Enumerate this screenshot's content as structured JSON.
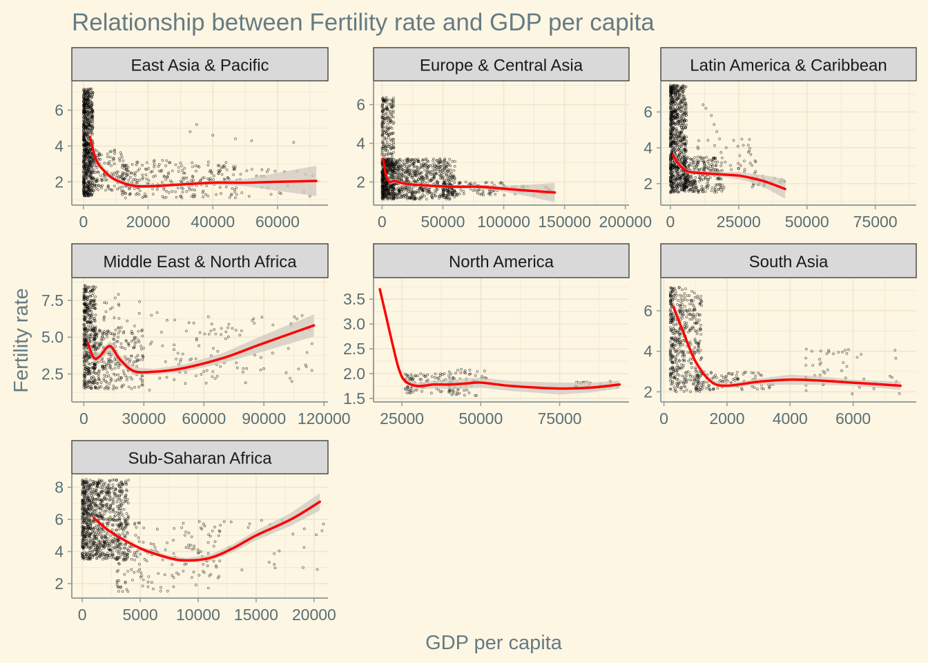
{
  "title": "Relationship between Fertility rate and GDP per capita",
  "xlabel": "GDP per capita",
  "ylabel": "Fertility rate",
  "colors": {
    "background": "#fdf6e3",
    "panel_background": "#fdf6e3",
    "grid": "#efe6cf",
    "strip_fill": "#d9d9d9",
    "strip_border": "#333333",
    "axis": "#93a1a1",
    "text": "#657b83",
    "tick_text": "#586e75",
    "points": "#000000",
    "smooth": "#ff0000",
    "ribbon": "#cfcac0"
  },
  "chart_data": {
    "type": "scatter",
    "facet_layout": "3 columns, free scales",
    "smoothing": "red loess line with grey confidence ribbon",
    "grid": true,
    "legend": "none",
    "panels": [
      {
        "name": "East Asia & Pacific",
        "xlim": [
          -3600,
          75600
        ],
        "ylim": [
          0.7,
          7.6
        ],
        "xticks": [
          0,
          20000,
          40000,
          60000
        ],
        "yticks": [
          2,
          4,
          6
        ],
        "xtick_labels": [
          "0",
          "20000",
          "40000",
          "60000"
        ],
        "ytick_labels": [
          "2",
          "4",
          "6"
        ],
        "smooth": [
          [
            2000,
            4.5
          ],
          [
            4000,
            3.2
          ],
          [
            7000,
            2.5
          ],
          [
            10000,
            2.1
          ],
          [
            15000,
            1.8
          ],
          [
            20000,
            1.75
          ],
          [
            30000,
            1.85
          ],
          [
            40000,
            1.95
          ],
          [
            50000,
            1.95
          ],
          [
            60000,
            2.0
          ],
          [
            72000,
            2.05
          ]
        ],
        "ribbon_halfwidth": [
          0.35,
          0.2,
          0.15,
          0.12,
          0.1,
          0.1,
          0.1,
          0.1,
          0.2,
          0.5,
          0.85
        ],
        "clusters": [
          {
            "x": [
              0,
              3000
            ],
            "y": [
              1.2,
              7.2
            ],
            "n": 700
          },
          {
            "x": [
              3000,
              12000
            ],
            "y": [
              1.5,
              3.8
            ],
            "n": 120
          },
          {
            "x": [
              12000,
              48000
            ],
            "y": [
              1.1,
              3.2
            ],
            "n": 220
          },
          {
            "x": [
              30000,
              72000
            ],
            "y": [
              1.1,
              2.7
            ],
            "n": 60
          }
        ],
        "extra_points": [
          [
            33000,
            4.8
          ],
          [
            35000,
            5.2
          ],
          [
            40000,
            4.6
          ],
          [
            47000,
            4.4
          ],
          [
            52000,
            4.3
          ],
          [
            65000,
            4.2
          ],
          [
            58000,
            1.3
          ],
          [
            70000,
            1.2
          ]
        ]
      },
      {
        "name": "Europe & Central Asia",
        "xlim": [
          -7000,
          203000
        ],
        "ylim": [
          0.8,
          7.2
        ],
        "xticks": [
          0,
          50000,
          100000,
          150000,
          200000
        ],
        "yticks": [
          2,
          4,
          6
        ],
        "xtick_labels": [
          "0",
          "50000",
          "100000",
          "150000",
          "200000"
        ],
        "ytick_labels": [
          "2",
          "4",
          "6"
        ],
        "smooth": [
          [
            1000,
            3.2
          ],
          [
            3000,
            2.4
          ],
          [
            6000,
            2.0
          ],
          [
            10000,
            2.05
          ],
          [
            20000,
            1.9
          ],
          [
            40000,
            1.8
          ],
          [
            60000,
            1.75
          ],
          [
            80000,
            1.75
          ],
          [
            100000,
            1.65
          ],
          [
            120000,
            1.55
          ],
          [
            142000,
            1.45
          ]
        ],
        "ribbon_halfwidth": [
          0.4,
          0.2,
          0.15,
          0.1,
          0.08,
          0.08,
          0.08,
          0.1,
          0.15,
          0.3,
          0.5
        ],
        "clusters": [
          {
            "x": [
              0,
              10000
            ],
            "y": [
              1.1,
              6.4
            ],
            "n": 300
          },
          {
            "x": [
              0,
              60000
            ],
            "y": [
              1.1,
              3.2
            ],
            "n": 900
          },
          {
            "x": [
              50000,
              100000
            ],
            "y": [
              1.3,
              2.0
            ],
            "n": 120
          },
          {
            "x": [
              100000,
              142000
            ],
            "y": [
              1.3,
              1.8
            ],
            "n": 30
          }
        ],
        "extra_points": []
      },
      {
        "name": "Latin America & Caribbean",
        "xlim": [
          -3500,
          90000
        ],
        "ylim": [
          0.8,
          7.7
        ],
        "xticks": [
          0,
          25000,
          50000,
          75000
        ],
        "yticks": [
          2,
          4,
          6
        ],
        "xtick_labels": [
          "0",
          "25000",
          "50000",
          "75000"
        ],
        "ytick_labels": [
          "2",
          "4",
          "6"
        ],
        "smooth": [
          [
            1000,
            3.6
          ],
          [
            3000,
            3.1
          ],
          [
            6000,
            2.7
          ],
          [
            10000,
            2.6
          ],
          [
            15000,
            2.55
          ],
          [
            20000,
            2.5
          ],
          [
            25000,
            2.45
          ],
          [
            30000,
            2.3
          ],
          [
            35000,
            2.1
          ],
          [
            42000,
            1.7
          ]
        ],
        "ribbon_halfwidth": [
          0.25,
          0.15,
          0.1,
          0.1,
          0.12,
          0.15,
          0.2,
          0.25,
          0.35,
          0.55
        ],
        "clusters": [
          {
            "x": [
              0,
              6000
            ],
            "y": [
              1.5,
              7.5
            ],
            "n": 800
          },
          {
            "x": [
              5000,
              20000
            ],
            "y": [
              1.5,
              3.5
            ],
            "n": 250
          },
          {
            "x": [
              10000,
              32000
            ],
            "y": [
              2.2,
              4.5
            ],
            "n": 60
          },
          {
            "x": [
              30000,
              42000
            ],
            "y": [
              1.8,
              2.6
            ],
            "n": 25
          }
        ],
        "extra_points": [
          [
            12000,
            6.4
          ],
          [
            13000,
            6.2
          ],
          [
            15000,
            5.8
          ],
          [
            16000,
            5.3
          ],
          [
            17000,
            4.9
          ],
          [
            18000,
            4.5
          ]
        ]
      },
      {
        "name": "Middle East & North Africa",
        "xlim": [
          -6000,
          122000
        ],
        "ylim": [
          0.6,
          9.0
        ],
        "xticks": [
          0,
          30000,
          60000,
          90000,
          120000
        ],
        "yticks": [
          2.5,
          5.0,
          7.5
        ],
        "xtick_labels": [
          "0",
          "30000",
          "60000",
          "90000",
          "120000"
        ],
        "ytick_labels": [
          "2.5",
          "5.0",
          "7.5"
        ],
        "smooth": [
          [
            2000,
            4.6
          ],
          [
            5000,
            3.6
          ],
          [
            8000,
            3.7
          ],
          [
            13000,
            4.4
          ],
          [
            18000,
            3.5
          ],
          [
            25000,
            2.7
          ],
          [
            35000,
            2.65
          ],
          [
            50000,
            2.9
          ],
          [
            70000,
            3.6
          ],
          [
            90000,
            4.6
          ],
          [
            115000,
            5.8
          ]
        ],
        "ribbon_halfwidth": [
          0.4,
          0.3,
          0.3,
          0.35,
          0.3,
          0.25,
          0.2,
          0.25,
          0.35,
          0.55,
          0.75
        ],
        "clusters": [
          {
            "x": [
              0,
              6000
            ],
            "y": [
              1.5,
              8.5
            ],
            "n": 400
          },
          {
            "x": [
              5000,
              30000
            ],
            "y": [
              1.5,
              5.5
            ],
            "n": 250
          },
          {
            "x": [
              10000,
              42000
            ],
            "y": [
              1.3,
              8.0
            ],
            "n": 60
          },
          {
            "x": [
              45000,
              115000
            ],
            "y": [
              1.8,
              6.5
            ],
            "n": 90
          }
        ],
        "extra_points": []
      },
      {
        "name": "North America",
        "xlim": [
          16000,
          97000
        ],
        "ylim": [
          1.43,
          3.92
        ],
        "xticks": [
          25000,
          50000,
          75000
        ],
        "yticks": [
          1.5,
          2.0,
          2.5,
          3.0,
          3.5
        ],
        "xtick_labels": [
          "25000",
          "50000",
          "75000"
        ],
        "ytick_labels": [
          "1.5",
          "2.0",
          "2.5",
          "3.0",
          "3.5"
        ],
        "smooth": [
          [
            18000,
            3.7
          ],
          [
            20000,
            3.15
          ],
          [
            22000,
            2.6
          ],
          [
            24000,
            2.1
          ],
          [
            26000,
            1.85
          ],
          [
            30000,
            1.75
          ],
          [
            35000,
            1.78
          ],
          [
            40000,
            1.78
          ],
          [
            45000,
            1.8
          ],
          [
            50000,
            1.82
          ],
          [
            60000,
            1.75
          ],
          [
            75000,
            1.7
          ],
          [
            85000,
            1.72
          ],
          [
            94000,
            1.78
          ]
        ],
        "ribbon_halfwidth": [
          0.05,
          0.04,
          0.04,
          0.04,
          0.05,
          0.06,
          0.08,
          0.09,
          0.1,
          0.1,
          0.1,
          0.12,
          0.1,
          0.08
        ],
        "clusters": [
          {
            "x": [
              26000,
              42000
            ],
            "y": [
              1.6,
              2.0
            ],
            "n": 90
          },
          {
            "x": [
              40000,
              52000
            ],
            "y": [
              1.55,
              2.1
            ],
            "n": 60
          },
          {
            "x": [
              80000,
              94000
            ],
            "y": [
              1.7,
              1.85
            ],
            "n": 25
          }
        ],
        "extra_points": []
      },
      {
        "name": "South Asia",
        "xlim": [
          -100,
          8000
        ],
        "ylim": [
          1.5,
          7.6
        ],
        "xticks": [
          0,
          2000,
          4000,
          6000
        ],
        "yticks": [
          2,
          4,
          6
        ],
        "xtick_labels": [
          "0",
          "2000",
          "4000",
          "6000"
        ],
        "ytick_labels": [
          "2",
          "4",
          "6"
        ],
        "smooth": [
          [
            300,
            6.2
          ],
          [
            600,
            5.0
          ],
          [
            1000,
            3.5
          ],
          [
            1500,
            2.5
          ],
          [
            2000,
            2.3
          ],
          [
            3000,
            2.5
          ],
          [
            4000,
            2.6
          ],
          [
            5000,
            2.55
          ],
          [
            6000,
            2.45
          ],
          [
            7500,
            2.3
          ]
        ],
        "ribbon_halfwidth": [
          0.3,
          0.15,
          0.12,
          0.1,
          0.1,
          0.15,
          0.25,
          0.2,
          0.15,
          0.2
        ],
        "clusters": [
          {
            "x": [
              200,
              1200
            ],
            "y": [
              2.0,
              7.2
            ],
            "n": 450
          },
          {
            "x": [
              1000,
              3500
            ],
            "y": [
              2.1,
              3.0
            ],
            "n": 120
          },
          {
            "x": [
              4500,
              7500
            ],
            "y": [
              1.9,
              4.2
            ],
            "n": 50
          }
        ],
        "extra_points": []
      },
      {
        "name": "Sub-Saharan Africa",
        "xlim": [
          -900,
          21200
        ],
        "ylim": [
          1.1,
          8.8
        ],
        "xticks": [
          0,
          5000,
          10000,
          15000,
          20000
        ],
        "yticks": [
          2,
          4,
          6,
          8
        ],
        "xtick_labels": [
          "0",
          "5000",
          "10000",
          "15000",
          "20000"
        ],
        "ytick_labels": [
          "2",
          "4",
          "6",
          "8"
        ],
        "smooth": [
          [
            1000,
            6.1
          ],
          [
            2500,
            5.2
          ],
          [
            5000,
            4.2
          ],
          [
            7500,
            3.6
          ],
          [
            9000,
            3.45
          ],
          [
            11000,
            3.6
          ],
          [
            13000,
            4.2
          ],
          [
            15000,
            5.0
          ],
          [
            18000,
            6.0
          ],
          [
            20500,
            7.1
          ]
        ],
        "ribbon_halfwidth": [
          0.08,
          0.08,
          0.1,
          0.15,
          0.15,
          0.2,
          0.25,
          0.3,
          0.4,
          0.55
        ],
        "clusters": [
          {
            "x": [
              0,
              4000
            ],
            "y": [
              3.5,
              8.5
            ],
            "n": 900
          },
          {
            "x": [
              3000,
              12000
            ],
            "y": [
              1.5,
              5.8
            ],
            "n": 160
          },
          {
            "x": [
              10000,
              21000
            ],
            "y": [
              2.5,
              6.0
            ],
            "n": 40
          }
        ],
        "extra_points": []
      }
    ]
  }
}
